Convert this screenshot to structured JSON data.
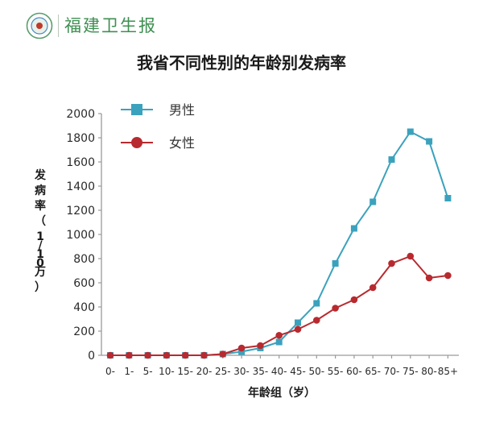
{
  "header": {
    "brand": "福建卫生报"
  },
  "chart_data": {
    "type": "line",
    "title": "我省不同性别的年龄别发病率",
    "xlabel": "年龄组（岁）",
    "ylabel": "发病率（1/10万）",
    "categories": [
      "0-",
      "1-",
      "5-",
      "10-",
      "15-",
      "20-",
      "25-",
      "30-",
      "35-",
      "40-",
      "45-",
      "50-",
      "55-",
      "60-",
      "65-",
      "70-",
      "75-",
      "80-",
      "85+"
    ],
    "ylim": [
      0,
      2000
    ],
    "yticks": [
      0,
      200,
      400,
      600,
      800,
      1000,
      1200,
      1400,
      1600,
      1800,
      2000
    ],
    "grid": false,
    "legend_position": "top-left",
    "series": [
      {
        "name": "男性",
        "color": "#3ba2bd",
        "marker": "square",
        "values": [
          0,
          0,
          0,
          0,
          0,
          0,
          10,
          30,
          60,
          110,
          270,
          430,
          760,
          1050,
          1270,
          1620,
          1850,
          1770,
          1300
        ]
      },
      {
        "name": "女性",
        "color": "#b82a2f",
        "marker": "circle",
        "values": [
          0,
          0,
          0,
          0,
          0,
          0,
          10,
          60,
          80,
          165,
          215,
          290,
          390,
          460,
          560,
          760,
          820,
          640,
          660
        ]
      }
    ]
  }
}
